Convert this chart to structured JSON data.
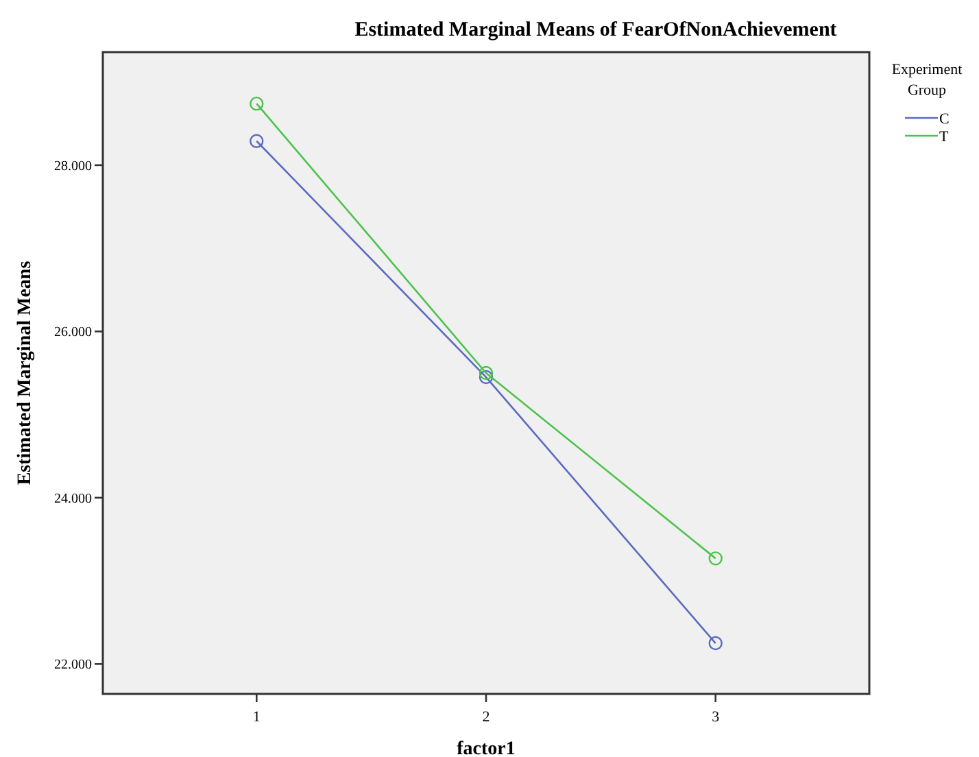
{
  "chart_data": {
    "type": "line",
    "title": "Estimated Marginal Means of FearOfNonAchievement",
    "xlabel": "factor1",
    "ylabel": "Estimated Marginal Means",
    "legend_title": "Experiment Group",
    "categories": [
      "1",
      "2",
      "3"
    ],
    "series": [
      {
        "name": "C",
        "color": "#5b6bbf",
        "values": [
          28.29,
          25.45,
          22.25
        ]
      },
      {
        "name": "T",
        "color": "#4cc34c",
        "values": [
          28.74,
          25.5,
          23.27
        ]
      }
    ],
    "ylim": [
      21.64,
      29.36
    ],
    "yticks": [
      {
        "value": 22,
        "label": "22.000"
      },
      {
        "value": 24,
        "label": "24.000"
      },
      {
        "value": 26,
        "label": "26.000"
      },
      {
        "value": 28,
        "label": "28.000"
      }
    ],
    "grid": false,
    "legend": "right",
    "marker": "circle",
    "line_style": "solid"
  }
}
